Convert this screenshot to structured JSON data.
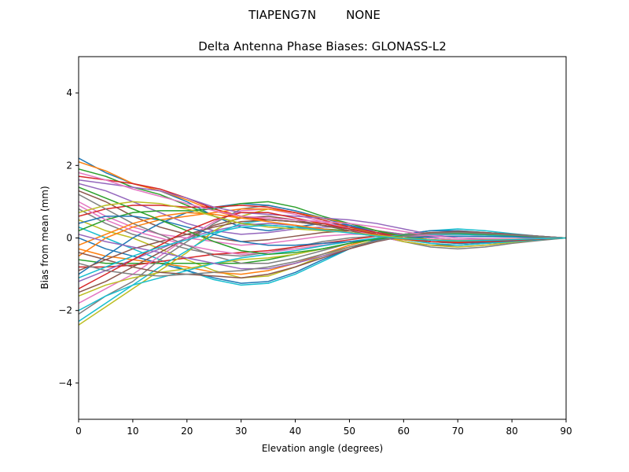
{
  "chart_data": {
    "type": "line",
    "suptitle": "TIAPENG7N        NONE",
    "title": "Delta Antenna Phase Biases: GLONASS-L2",
    "xlabel": "Elevation angle (degrees)",
    "ylabel": "Bias from mean (mm)",
    "xlim": [
      0,
      90
    ],
    "ylim": [
      -5,
      5
    ],
    "x_ticks": [
      0,
      10,
      20,
      30,
      40,
      50,
      60,
      70,
      80,
      90
    ],
    "y_ticks": [
      -4,
      -2,
      0,
      2,
      4
    ],
    "y_tick_labels": [
      "−4",
      "−2",
      "0",
      "2",
      "4"
    ],
    "grid": false,
    "legend": "none",
    "x": [
      0,
      5,
      10,
      15,
      20,
      25,
      30,
      35,
      40,
      45,
      50,
      55,
      60,
      65,
      70,
      75,
      80,
      85,
      90
    ],
    "colors": [
      "#1f77b4",
      "#ff7f0e",
      "#2ca02c",
      "#d62728",
      "#9467bd",
      "#8c564b",
      "#e377c2",
      "#7f7f7f",
      "#bcbd22",
      "#17becf"
    ],
    "series": [
      {
        "values": [
          2.2,
          1.8,
          1.5,
          1.3,
          1.0,
          0.6,
          0.3,
          0.2,
          0.3,
          0.4,
          0.35,
          0.2,
          0.0,
          -0.15,
          -0.2,
          -0.15,
          -0.1,
          -0.05,
          0.0
        ]
      },
      {
        "values": [
          2.1,
          1.85,
          1.5,
          1.3,
          1.05,
          0.75,
          0.55,
          0.5,
          0.45,
          0.4,
          0.3,
          0.2,
          0.1,
          0.0,
          -0.05,
          -0.05,
          -0.03,
          -0.02,
          0.0
        ]
      },
      {
        "values": [
          1.9,
          1.7,
          1.4,
          1.2,
          0.9,
          0.6,
          0.4,
          0.35,
          0.3,
          0.25,
          0.2,
          0.1,
          0.0,
          -0.1,
          -0.15,
          -0.12,
          -0.08,
          -0.04,
          0.0
        ]
      },
      {
        "values": [
          1.7,
          1.6,
          1.5,
          1.35,
          1.1,
          0.8,
          0.6,
          0.5,
          0.45,
          0.35,
          0.25,
          0.15,
          0.05,
          -0.05,
          -0.1,
          -0.1,
          -0.07,
          -0.03,
          0.0
        ]
      },
      {
        "values": [
          1.5,
          1.3,
          1.0,
          0.7,
          0.4,
          0.2,
          0.1,
          0.15,
          0.25,
          0.3,
          0.3,
          0.2,
          0.1,
          0.0,
          -0.05,
          -0.05,
          -0.03,
          -0.02,
          0.0
        ]
      },
      {
        "values": [
          1.3,
          1.0,
          0.6,
          0.3,
          0.1,
          0.0,
          -0.1,
          -0.05,
          0.05,
          0.15,
          0.2,
          0.15,
          0.05,
          -0.05,
          -0.1,
          -0.1,
          -0.07,
          -0.03,
          0.0
        ]
      },
      {
        "values": [
          1.0,
          0.6,
          0.3,
          0.1,
          0.0,
          -0.1,
          -0.2,
          -0.15,
          -0.05,
          0.05,
          0.1,
          0.1,
          0.05,
          0.0,
          -0.05,
          -0.05,
          -0.03,
          -0.01,
          0.0
        ]
      },
      {
        "values": [
          0.8,
          0.4,
          0.1,
          -0.1,
          -0.3,
          -0.45,
          -0.5,
          -0.4,
          -0.25,
          -0.1,
          0.0,
          0.05,
          0.05,
          0.05,
          0.05,
          0.04,
          0.03,
          0.01,
          0.0
        ]
      },
      {
        "values": [
          0.5,
          0.2,
          0.0,
          -0.3,
          -0.6,
          -0.9,
          -1.1,
          -1.05,
          -0.8,
          -0.5,
          -0.25,
          -0.05,
          0.1,
          0.2,
          0.2,
          0.15,
          0.1,
          0.05,
          0.0
        ]
      },
      {
        "values": [
          0.3,
          0.0,
          -0.3,
          -0.6,
          -0.9,
          -1.15,
          -1.3,
          -1.25,
          -1.0,
          -0.65,
          -0.3,
          -0.05,
          0.1,
          0.2,
          0.25,
          0.2,
          0.12,
          0.05,
          0.0
        ]
      },
      {
        "values": [
          0.0,
          -0.3,
          -0.5,
          -0.7,
          -0.9,
          -1.1,
          -1.25,
          -1.2,
          -0.95,
          -0.6,
          -0.3,
          -0.05,
          0.1,
          0.2,
          0.2,
          0.15,
          0.1,
          0.05,
          0.0
        ]
      },
      {
        "values": [
          -0.3,
          -0.5,
          -0.6,
          -0.7,
          -0.8,
          -0.95,
          -1.0,
          -0.9,
          -0.7,
          -0.45,
          -0.2,
          0.0,
          0.1,
          0.15,
          0.15,
          0.12,
          0.08,
          0.04,
          0.0
        ]
      },
      {
        "values": [
          -0.6,
          -0.7,
          -0.7,
          -0.7,
          -0.7,
          -0.7,
          -0.7,
          -0.6,
          -0.45,
          -0.3,
          -0.15,
          0.0,
          0.1,
          0.12,
          0.12,
          0.1,
          0.07,
          0.03,
          0.0
        ]
      },
      {
        "values": [
          -0.8,
          -0.8,
          -0.75,
          -0.65,
          -0.55,
          -0.45,
          -0.4,
          -0.35,
          -0.25,
          -0.15,
          -0.05,
          0.05,
          0.1,
          0.1,
          0.1,
          0.08,
          0.05,
          0.02,
          0.0
        ]
      },
      {
        "values": [
          -1.2,
          -0.9,
          -0.6,
          -0.3,
          0.0,
          0.2,
          0.35,
          0.4,
          0.35,
          0.25,
          0.15,
          0.05,
          -0.05,
          -0.1,
          -0.12,
          -0.1,
          -0.07,
          -0.03,
          0.0
        ]
      },
      {
        "values": [
          -1.5,
          -1.2,
          -0.8,
          -0.4,
          0.0,
          0.35,
          0.55,
          0.6,
          0.5,
          0.35,
          0.2,
          0.05,
          -0.1,
          -0.2,
          -0.2,
          -0.15,
          -0.1,
          -0.05,
          0.0
        ]
      },
      {
        "values": [
          -1.8,
          -1.4,
          -1.0,
          -0.5,
          0.0,
          0.45,
          0.75,
          0.8,
          0.65,
          0.45,
          0.25,
          0.05,
          -0.1,
          -0.2,
          -0.25,
          -0.2,
          -0.12,
          -0.05,
          0.0
        ]
      },
      {
        "values": [
          -2.1,
          -1.6,
          -1.2,
          -0.6,
          -0.1,
          0.4,
          0.8,
          0.9,
          0.75,
          0.55,
          0.35,
          0.1,
          -0.1,
          -0.25,
          -0.3,
          -0.25,
          -0.15,
          -0.07,
          0.0
        ]
      },
      {
        "values": [
          -2.4,
          -1.9,
          -1.4,
          -0.9,
          -0.4,
          0.2,
          0.6,
          0.8,
          0.7,
          0.5,
          0.3,
          0.1,
          -0.1,
          -0.2,
          -0.25,
          -0.2,
          -0.12,
          -0.05,
          0.0
        ]
      },
      {
        "values": [
          -2.3,
          -1.8,
          -1.3,
          -0.8,
          -0.35,
          0.1,
          0.4,
          0.5,
          0.45,
          0.35,
          0.25,
          0.1,
          -0.05,
          -0.15,
          -0.2,
          -0.15,
          -0.1,
          -0.05,
          0.0
        ]
      },
      {
        "values": [
          -1.0,
          -0.5,
          0.0,
          0.4,
          0.7,
          0.85,
          0.95,
          0.9,
          0.75,
          0.55,
          0.35,
          0.15,
          0.0,
          -0.1,
          -0.15,
          -0.12,
          -0.08,
          -0.04,
          0.0
        ]
      },
      {
        "values": [
          -0.5,
          0.0,
          0.3,
          0.5,
          0.6,
          0.7,
          0.8,
          0.8,
          0.7,
          0.55,
          0.4,
          0.2,
          0.05,
          -0.05,
          -0.1,
          -0.1,
          -0.07,
          -0.03,
          0.0
        ]
      },
      {
        "values": [
          0.2,
          0.5,
          0.7,
          0.75,
          0.75,
          0.8,
          0.95,
          1.0,
          0.85,
          0.6,
          0.4,
          0.2,
          0.05,
          -0.05,
          -0.1,
          -0.1,
          -0.07,
          -0.03,
          0.0
        ]
      },
      {
        "values": [
          0.6,
          0.8,
          0.9,
          0.9,
          0.85,
          0.85,
          0.9,
          0.85,
          0.7,
          0.5,
          0.3,
          0.15,
          0.0,
          -0.1,
          -0.12,
          -0.1,
          -0.07,
          -0.03,
          0.0
        ]
      },
      {
        "values": [
          1.6,
          1.5,
          1.4,
          1.3,
          1.1,
          0.85,
          0.7,
          0.65,
          0.6,
          0.55,
          0.5,
          0.4,
          0.25,
          0.1,
          0.0,
          -0.03,
          -0.03,
          -0.02,
          0.0
        ]
      },
      {
        "values": [
          -0.9,
          -0.6,
          -0.3,
          -0.1,
          0.1,
          0.3,
          0.45,
          0.5,
          0.45,
          0.35,
          0.25,
          0.1,
          0.0,
          -0.05,
          -0.08,
          -0.07,
          -0.05,
          -0.02,
          0.0
        ]
      },
      {
        "values": [
          0.9,
          0.5,
          0.2,
          0.0,
          -0.2,
          -0.35,
          -0.45,
          -0.4,
          -0.3,
          -0.2,
          -0.1,
          -0.02,
          0.05,
          0.08,
          0.1,
          0.08,
          0.05,
          0.02,
          0.0
        ]
      },
      {
        "values": [
          1.2,
          0.8,
          0.4,
          0.1,
          -0.2,
          -0.5,
          -0.7,
          -0.7,
          -0.55,
          -0.35,
          -0.15,
          0.0,
          0.1,
          0.15,
          0.15,
          0.12,
          0.08,
          0.04,
          0.0
        ]
      },
      {
        "values": [
          -1.6,
          -1.3,
          -1.1,
          -0.95,
          -0.85,
          -0.7,
          -0.6,
          -0.55,
          -0.45,
          -0.3,
          -0.15,
          -0.02,
          0.08,
          0.12,
          0.12,
          0.1,
          0.07,
          0.03,
          0.0
        ]
      },
      {
        "values": [
          -2.0,
          -1.6,
          -1.3,
          -1.1,
          -0.9,
          -0.7,
          -0.55,
          -0.45,
          -0.35,
          -0.22,
          -0.1,
          0.0,
          0.08,
          0.1,
          0.1,
          0.08,
          0.05,
          0.02,
          0.0
        ]
      },
      {
        "values": [
          0.4,
          0.6,
          0.6,
          0.5,
          0.3,
          0.1,
          -0.1,
          -0.2,
          -0.2,
          -0.15,
          -0.1,
          -0.05,
          0.0,
          0.03,
          0.05,
          0.04,
          0.03,
          0.01,
          0.0
        ]
      },
      {
        "values": [
          -0.2,
          0.1,
          0.4,
          0.6,
          0.7,
          0.65,
          0.55,
          0.45,
          0.35,
          0.25,
          0.15,
          0.05,
          -0.05,
          -0.1,
          -0.12,
          -0.1,
          -0.07,
          -0.03,
          0.0
        ]
      },
      {
        "values": [
          1.4,
          1.1,
          0.8,
          0.5,
          0.2,
          -0.1,
          -0.35,
          -0.45,
          -0.4,
          -0.3,
          -0.15,
          -0.03,
          0.07,
          0.12,
          0.13,
          0.1,
          0.07,
          0.03,
          0.0
        ]
      },
      {
        "values": [
          -1.4,
          -1.0,
          -0.6,
          -0.2,
          0.2,
          0.5,
          0.7,
          0.7,
          0.55,
          0.4,
          0.25,
          0.1,
          -0.02,
          -0.1,
          -0.13,
          -0.1,
          -0.07,
          -0.03,
          0.0
        ]
      },
      {
        "values": [
          0.1,
          -0.1,
          -0.25,
          -0.4,
          -0.55,
          -0.7,
          -0.85,
          -0.85,
          -0.7,
          -0.5,
          -0.3,
          -0.1,
          0.05,
          0.15,
          0.18,
          0.15,
          0.1,
          0.05,
          0.0
        ]
      },
      {
        "values": [
          -0.4,
          -0.6,
          -0.8,
          -0.95,
          -1.0,
          -1.05,
          -1.1,
          -1.0,
          -0.8,
          -0.55,
          -0.3,
          -0.1,
          0.05,
          0.15,
          0.18,
          0.15,
          0.1,
          0.05,
          0.0
        ]
      },
      {
        "values": [
          1.8,
          1.6,
          1.35,
          1.15,
          0.95,
          0.75,
          0.6,
          0.55,
          0.5,
          0.45,
          0.4,
          0.3,
          0.18,
          0.06,
          0.0,
          -0.02,
          -0.02,
          -0.01,
          0.0
        ]
      },
      {
        "values": [
          -0.7,
          -0.9,
          -1.0,
          -1.05,
          -1.0,
          -0.95,
          -0.9,
          -0.8,
          -0.65,
          -0.45,
          -0.25,
          -0.08,
          0.05,
          0.12,
          0.15,
          0.12,
          0.08,
          0.04,
          0.0
        ]
      },
      {
        "values": [
          0.7,
          0.9,
          1.0,
          0.95,
          0.8,
          0.6,
          0.4,
          0.3,
          0.25,
          0.2,
          0.15,
          0.08,
          0.0,
          -0.05,
          -0.07,
          -0.06,
          -0.04,
          -0.02,
          0.0
        ]
      },
      {
        "values": [
          -1.1,
          -0.8,
          -0.5,
          -0.25,
          -0.05,
          0.15,
          0.3,
          0.35,
          0.3,
          0.22,
          0.14,
          0.05,
          -0.02,
          -0.06,
          -0.08,
          -0.07,
          -0.05,
          -0.02,
          0.0
        ]
      }
    ]
  }
}
